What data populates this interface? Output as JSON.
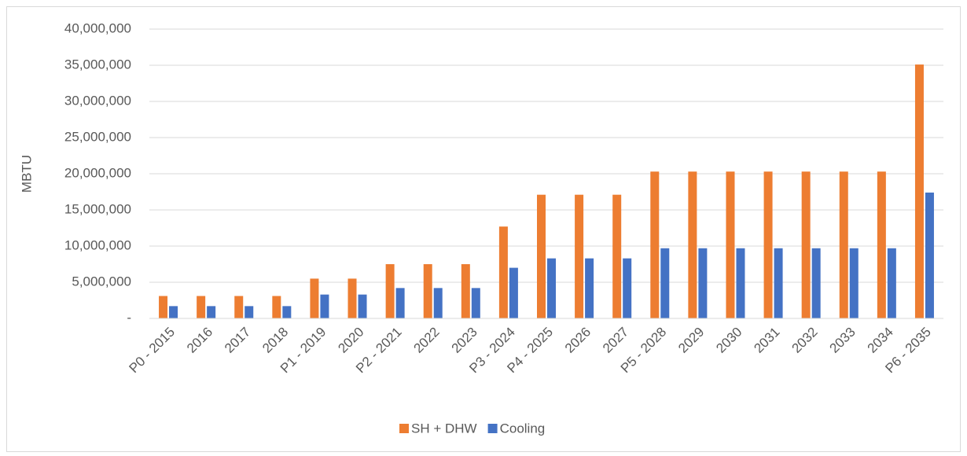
{
  "chart_data": {
    "type": "bar",
    "y_label": "MBTU",
    "categories": [
      "P0 - 2015",
      "2016",
      "2017",
      "2018",
      "P1 - 2019",
      "2020",
      "P2 - 2021",
      "2022",
      "2023",
      "P3 - 2024",
      "P4 - 2025",
      "2026",
      "2027",
      "P5 - 2028",
      "2029",
      "2030",
      "2031",
      "2032",
      "2033",
      "2034",
      "P6 - 2035"
    ],
    "series": [
      {
        "name": "SH + DHW",
        "color": "#ed7d31",
        "values": [
          3100000,
          3100000,
          3100000,
          3100000,
          5500000,
          5500000,
          7500000,
          7500000,
          7500000,
          12700000,
          17100000,
          17100000,
          17100000,
          20300000,
          20300000,
          20300000,
          20300000,
          20300000,
          20300000,
          20300000,
          35100000
        ]
      },
      {
        "name": "Cooling",
        "color": "#4472c4",
        "values": [
          1700000,
          1700000,
          1700000,
          1700000,
          3300000,
          3300000,
          4200000,
          4200000,
          4200000,
          7000000,
          8300000,
          8300000,
          8300000,
          9700000,
          9700000,
          9700000,
          9700000,
          9700000,
          9700000,
          9700000,
          17400000
        ]
      }
    ],
    "ylim": [
      0,
      40000000
    ],
    "yticks": [
      {
        "value": 0,
        "label": "-"
      },
      {
        "value": 5000000,
        "label": "5,000,000"
      },
      {
        "value": 10000000,
        "label": "10,000,000"
      },
      {
        "value": 15000000,
        "label": "15,000,000"
      },
      {
        "value": 20000000,
        "label": "20,000,000"
      },
      {
        "value": 25000000,
        "label": "25,000,000"
      },
      {
        "value": 30000000,
        "label": "30,000,000"
      },
      {
        "value": 35000000,
        "label": "35,000,000"
      },
      {
        "value": 40000000,
        "label": "40,000,000"
      }
    ],
    "grid": true,
    "legend": "bottom"
  }
}
